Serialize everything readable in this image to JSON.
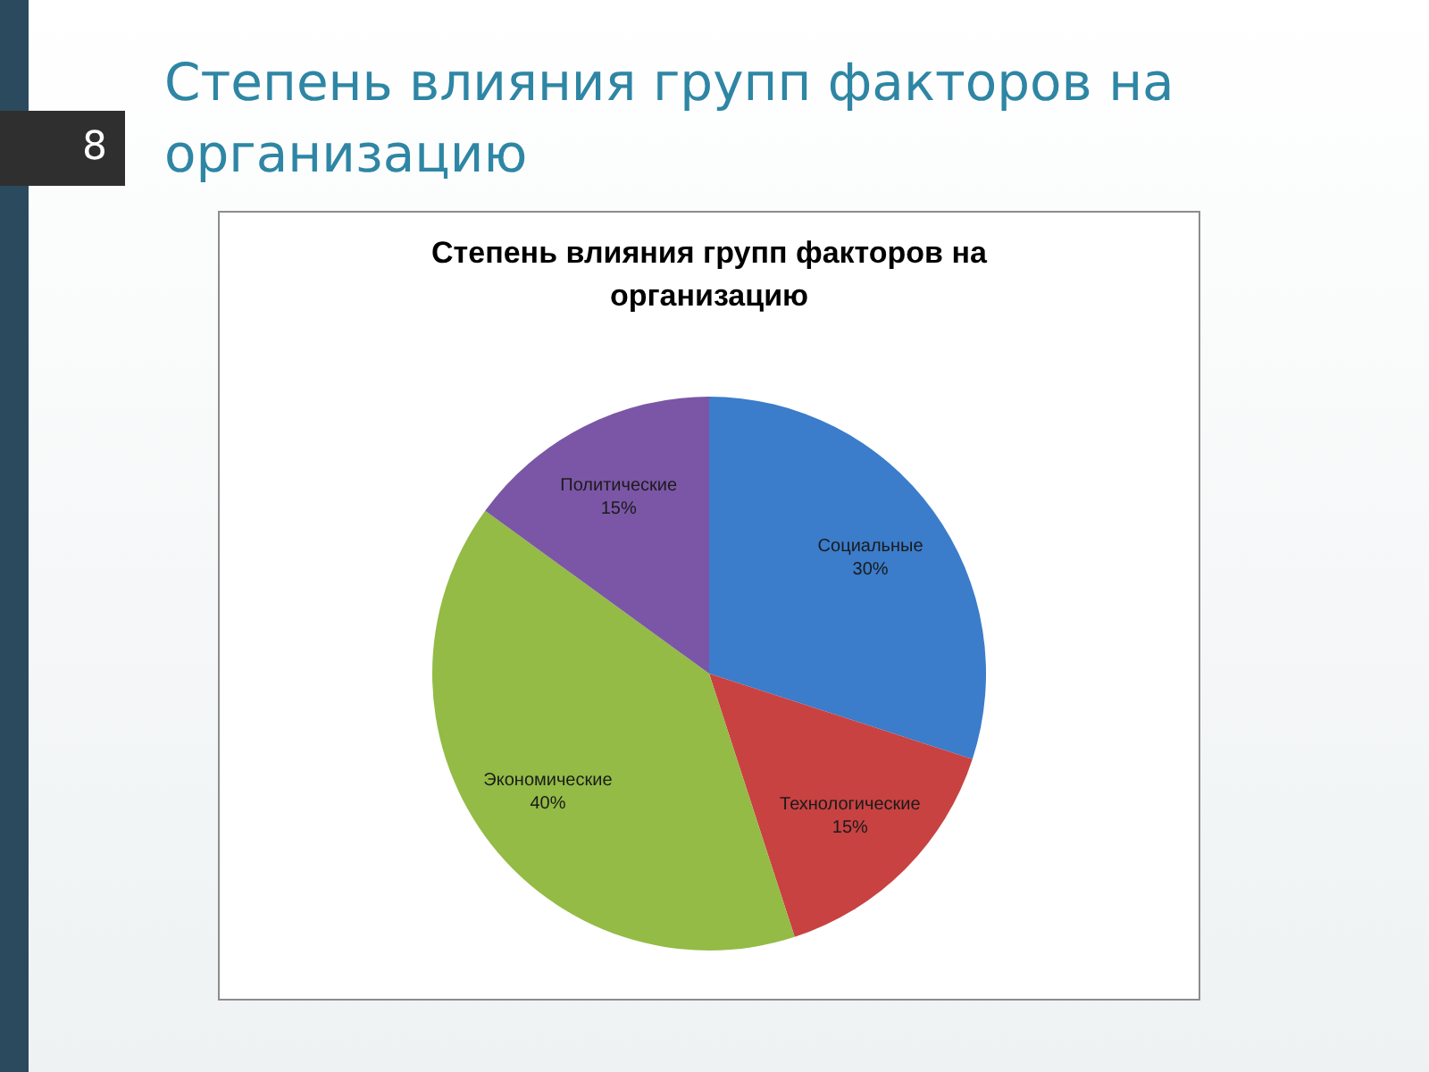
{
  "chart_data": {
    "type": "pie",
    "title": "Степень влияния групп факторов на организацию",
    "categories": [
      "Социальные",
      "Технологические",
      "Экономические",
      "Политические"
    ],
    "values": [
      30,
      15,
      40,
      15
    ],
    "colors": [
      "#3b7ccb",
      "#c84242",
      "#93bb45",
      "#7b56a6"
    ],
    "value_labels": [
      "30%",
      "15%",
      "40%",
      "15%"
    ],
    "annotations": [
      "Степень влияния групп факторов на организацию",
      "8"
    ]
  }
}
